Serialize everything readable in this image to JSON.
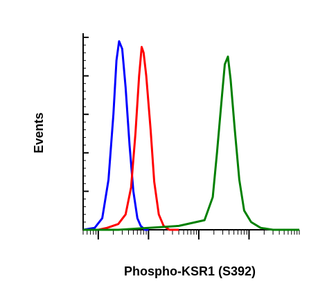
{
  "chart_data": {
    "type": "line",
    "title": "",
    "xlabel": "Phospho-KSR1 (S392)",
    "ylabel": "Events",
    "xscale": "log",
    "xlim": [
      0.5,
      10000
    ],
    "ylim": [
      0,
      100
    ],
    "grid": false,
    "legend": "none",
    "series": [
      {
        "color": "#0000ff",
        "points": [
          [
            0.5,
            0
          ],
          [
            0.85,
            1
          ],
          [
            1.2,
            6
          ],
          [
            1.6,
            26
          ],
          [
            2.0,
            60
          ],
          [
            2.3,
            88
          ],
          [
            2.6,
            98
          ],
          [
            3.0,
            94
          ],
          [
            3.5,
            74
          ],
          [
            4.2,
            44
          ],
          [
            5.0,
            20
          ],
          [
            6.0,
            6
          ],
          [
            7.0,
            2
          ],
          [
            8.5,
            0
          ],
          [
            10,
            0
          ]
        ]
      },
      {
        "color": "#ff0000",
        "points": [
          [
            0.5,
            0
          ],
          [
            1.0,
            0
          ],
          [
            1.5,
            1
          ],
          [
            2.5,
            3
          ],
          [
            3.5,
            8
          ],
          [
            4.5,
            22
          ],
          [
            5.5,
            50
          ],
          [
            6.5,
            80
          ],
          [
            7.3,
            95
          ],
          [
            8.0,
            92
          ],
          [
            9.0,
            80
          ],
          [
            11,
            52
          ],
          [
            13,
            25
          ],
          [
            16,
            8
          ],
          [
            20,
            2
          ],
          [
            26,
            0
          ],
          [
            40,
            0
          ]
        ]
      },
      {
        "color": "#008000",
        "points": [
          [
            0.5,
            0
          ],
          [
            2.5,
            0
          ],
          [
            10,
            1
          ],
          [
            40,
            2
          ],
          [
            130,
            5
          ],
          [
            190,
            17
          ],
          [
            230,
            40
          ],
          [
            290,
            70
          ],
          [
            330,
            86
          ],
          [
            380,
            90
          ],
          [
            430,
            78
          ],
          [
            520,
            52
          ],
          [
            640,
            26
          ],
          [
            800,
            10
          ],
          [
            1100,
            4
          ],
          [
            1700,
            1
          ],
          [
            3000,
            0
          ],
          [
            10000,
            0
          ]
        ]
      }
    ]
  }
}
